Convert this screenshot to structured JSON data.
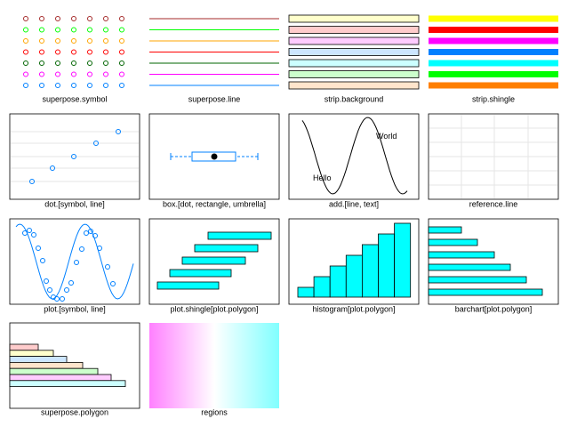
{
  "panels": [
    "superpose.symbol",
    "superpose.line",
    "strip.background",
    "strip.shingle",
    "dot.[symbol, line]",
    "box.[dot, rectangle, umbrella]",
    "add.[line, text]",
    "reference.line",
    "plot.[symbol, line]",
    "plot.shingle[plot.polygon]",
    "histogram[plot.polygon]",
    "barchart[plot.polygon]",
    "superpose.polygon",
    "regions"
  ],
  "texts": [
    "Hello",
    "World"
  ]
}
